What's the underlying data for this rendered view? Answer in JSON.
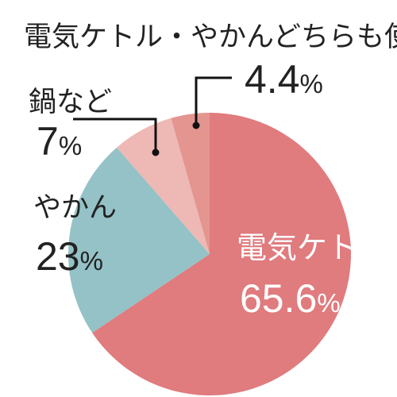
{
  "chart_data": {
    "type": "pie",
    "title": "",
    "start": "12 o'clock",
    "direction": "clockwise",
    "slices": [
      {
        "label": "電気ケトル",
        "value": 65.6,
        "value_label": "65.6",
        "unit": "%",
        "color": "#e07b7e"
      },
      {
        "label": "やかん",
        "value": 23,
        "value_label": "23",
        "unit": "%",
        "color": "#94c2c6"
      },
      {
        "label": "鍋など",
        "value": 7,
        "value_label": "7",
        "unit": "%",
        "color": "#eeb8b4"
      },
      {
        "label": "電気ケトル・やかんどちらも使う",
        "value": 4.4,
        "value_label": "4.4",
        "unit": "%",
        "color": "#e49590"
      }
    ]
  }
}
